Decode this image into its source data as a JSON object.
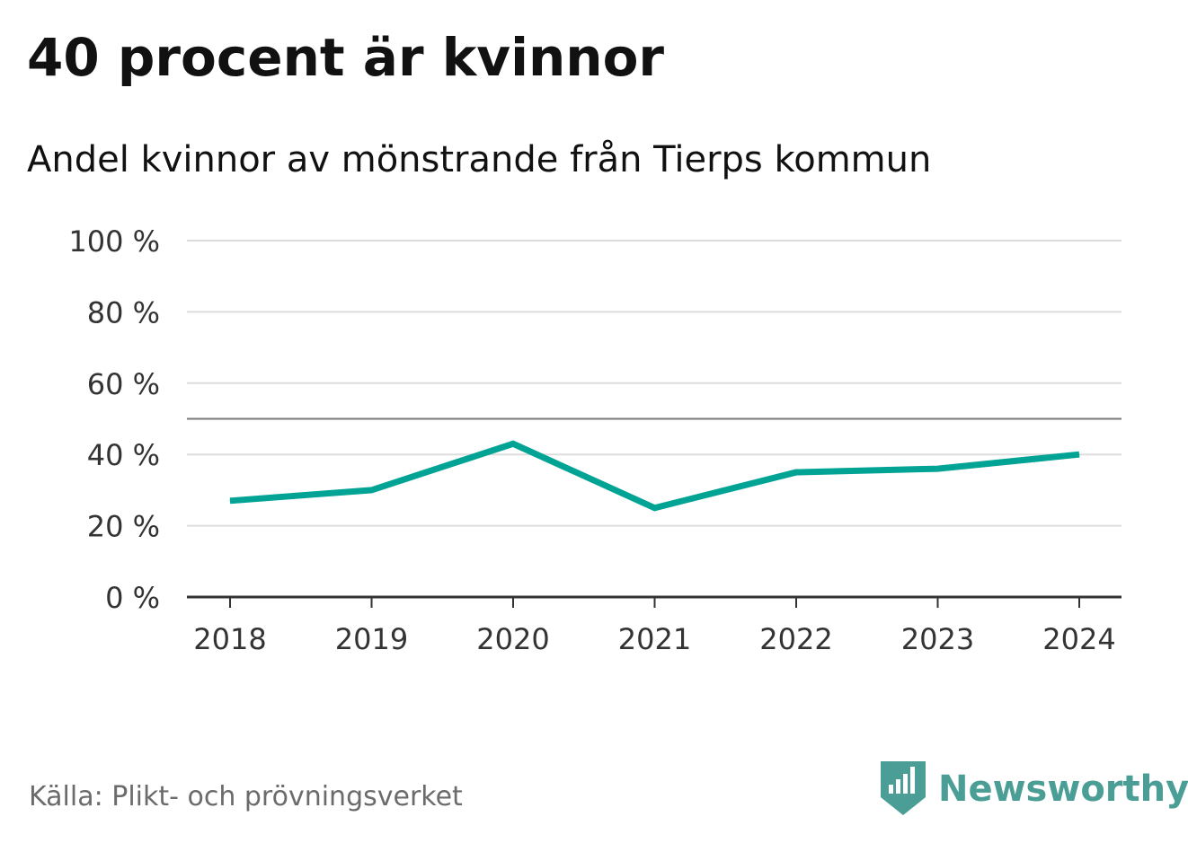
{
  "title": "40 procent är kvinnor",
  "subtitle": "Andel kvinnor av mönstrande från Tierps kommun",
  "source": "Källa: Plikt- och prövningsverket",
  "brand": {
    "name": "Newsworthy",
    "icon": "newsworthy-logo-icon",
    "color": "#4a9e95"
  },
  "colors": {
    "line": "#00a394",
    "grid": "#dddddd",
    "reference": "#777777",
    "axis": "#333333"
  },
  "chart_data": {
    "type": "line",
    "title": "40 procent är kvinnor",
    "subtitle": "Andel kvinnor av mönstrande från Tierps kommun",
    "xlabel": "",
    "ylabel": "",
    "x": [
      "2018",
      "2019",
      "2020",
      "2021",
      "2022",
      "2023",
      "2024"
    ],
    "series": [
      {
        "name": "Andel kvinnor",
        "values": [
          27,
          30,
          43,
          25,
          35,
          36,
          40
        ]
      }
    ],
    "ylim": [
      0,
      100
    ],
    "yticks": [
      0,
      20,
      40,
      60,
      80,
      100
    ],
    "ytick_labels": [
      "0 %",
      "20 %",
      "40 %",
      "60 %",
      "80 %",
      "100 %"
    ],
    "reference_line": 50,
    "grid": true
  }
}
